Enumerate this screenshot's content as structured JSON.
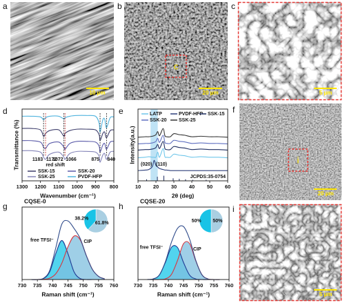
{
  "images": [
    {
      "label": "a",
      "scale_bar": "10 μm"
    },
    {
      "label": "b",
      "scale_bar": "20 μm",
      "inset_label": "c"
    },
    {
      "label": "c",
      "scale_bar": "5 μm"
    },
    {
      "label": "f",
      "scale_bar": "20 μm",
      "inset_label": "i"
    },
    {
      "label": "i",
      "scale_bar": "5 μm"
    }
  ],
  "chart_data": [
    {
      "type": "line",
      "panel": "d",
      "ylabel": "Transmittance (%)",
      "xlabel": "Wavenumber (cm⁻¹)",
      "x": [
        1300,
        1250,
        1200,
        1183,
        1172,
        1150,
        1100,
        1072,
        1066,
        1040,
        1000,
        950,
        900,
        880,
        875,
        860,
        850,
        840,
        820,
        800
      ],
      "xlim": [
        1300,
        800
      ],
      "xticks": [
        1300,
        1200,
        1100,
        1000,
        900,
        800
      ],
      "ylim": [
        0,
        1
      ],
      "series": [
        {
          "name": "SSK-15",
          "color": "#3d3d6b",
          "values": [
            0.73,
            0.73,
            0.71,
            0.62,
            0.66,
            0.7,
            0.71,
            0.62,
            0.66,
            0.7,
            0.72,
            0.72,
            0.71,
            0.64,
            0.56,
            0.66,
            0.68,
            0.6,
            0.7,
            0.71
          ]
        },
        {
          "name": "SSK-20",
          "color": "#5a5aa8",
          "values": [
            0.56,
            0.56,
            0.54,
            0.47,
            0.45,
            0.52,
            0.54,
            0.47,
            0.44,
            0.52,
            0.55,
            0.55,
            0.54,
            0.48,
            0.4,
            0.5,
            0.52,
            0.44,
            0.54,
            0.55
          ]
        },
        {
          "name": "SSK-25",
          "color": "#8484b8",
          "values": [
            0.42,
            0.42,
            0.4,
            0.33,
            0.3,
            0.37,
            0.4,
            0.33,
            0.3,
            0.38,
            0.41,
            0.41,
            0.4,
            0.34,
            0.26,
            0.36,
            0.38,
            0.3,
            0.4,
            0.41
          ]
        },
        {
          "name": "PVDF-HFP",
          "color": "#4fb3de",
          "values": [
            0.9,
            0.9,
            0.89,
            0.85,
            0.88,
            0.9,
            0.9,
            0.86,
            0.88,
            0.9,
            0.91,
            0.91,
            0.9,
            0.8,
            0.68,
            0.85,
            0.86,
            0.74,
            0.88,
            0.89
          ]
        }
      ],
      "peak_labels": [
        1183,
        1172,
        1072,
        1066,
        875,
        840
      ],
      "peak_label_colors": [
        "#111",
        "#c62828",
        "#111",
        "#c62828",
        "#111",
        "#111"
      ],
      "annotation": "red shift",
      "annotation_color": "#c62828"
    },
    {
      "type": "line",
      "panel": "e",
      "ylabel": "Intensity(a.u.)",
      "xlabel": "2θ (deg)",
      "x": [
        10,
        14,
        16,
        18,
        19,
        20,
        21,
        22,
        24,
        25,
        26,
        28,
        30,
        33,
        36,
        40,
        45,
        50,
        55,
        60
      ],
      "xlim": [
        10,
        60
      ],
      "xticks": [
        10,
        20,
        30,
        40,
        50,
        60
      ],
      "ylim": [
        0,
        1.4
      ],
      "shade": [
        17,
        21
      ],
      "shade_color": "#bfe3f5",
      "series": [
        {
          "name": "LATP",
          "color": "#6ec6ea",
          "values": [
            0.45,
            0.46,
            0.47,
            0.46,
            0.46,
            0.46,
            0.56,
            0.46,
            0.63,
            0.47,
            0.46,
            0.46,
            0.52,
            0.5,
            0.49,
            0.46,
            0.47,
            0.46,
            0.46,
            0.45
          ]
        },
        {
          "name": "PVDF-HFP",
          "color": "#2c3e7a",
          "values": [
            0.2,
            0.21,
            0.22,
            0.28,
            0.4,
            0.3,
            0.27,
            0.24,
            0.22,
            0.21,
            0.21,
            0.2,
            0.2,
            0.2,
            0.2,
            0.2,
            0.2,
            0.2,
            0.2,
            0.2
          ]
        },
        {
          "name": "SSK-15",
          "color": "#1b2a5e",
          "values": [
            0.6,
            0.61,
            0.61,
            0.62,
            0.63,
            0.65,
            0.71,
            0.63,
            0.77,
            0.63,
            0.61,
            0.61,
            0.67,
            0.65,
            0.64,
            0.61,
            0.62,
            0.61,
            0.61,
            0.6
          ]
        },
        {
          "name": "SSK-20",
          "color": "#5f6fc0",
          "values": [
            0.72,
            0.73,
            0.73,
            0.74,
            0.75,
            0.77,
            0.83,
            0.75,
            0.89,
            0.75,
            0.73,
            0.73,
            0.79,
            0.77,
            0.76,
            0.73,
            0.74,
            0.73,
            0.73,
            0.72
          ]
        },
        {
          "name": "SSK-25",
          "color": "#333333",
          "values": [
            0.85,
            0.86,
            0.86,
            0.87,
            0.88,
            0.9,
            0.96,
            0.88,
            1.02,
            0.88,
            0.86,
            0.86,
            0.92,
            0.9,
            0.89,
            0.86,
            0.87,
            0.86,
            0.86,
            0.85
          ]
        }
      ],
      "reference": {
        "name": "JCPDS:35-0754",
        "color": "#1b2a5e",
        "x": [
          14.8,
          20.8,
          24.4,
          29.6,
          33.0,
          36.5,
          40.5,
          48.0
        ],
        "values": [
          0.03,
          0.08,
          0.1,
          0.05,
          0.04,
          0.03,
          0.02,
          0.02
        ]
      },
      "annotations": [
        "(020)",
        "(110)"
      ]
    },
    {
      "type": "area",
      "panel": "g",
      "title": "CQSE-0",
      "xlabel": "Raman shift (cm⁻¹)",
      "x": [
        733,
        735,
        737,
        739,
        741,
        743,
        745,
        747,
        749,
        751,
        753,
        755,
        757
      ],
      "xlim": [
        730,
        760
      ],
      "xticks": [
        730,
        735,
        740,
        745,
        750,
        755,
        760
      ],
      "ylim": [
        0,
        1.15
      ],
      "series": [
        {
          "name": "free TFSI⁻",
          "color": "#1f3a93",
          "fill": "#18c5e8",
          "label_color": "#8e44ad",
          "values": [
            0,
            0,
            0.015,
            0.12,
            0.41,
            0.62,
            0.41,
            0.12,
            0.015,
            0,
            0,
            0,
            0
          ]
        },
        {
          "name": "CIP",
          "color": "#d9363e",
          "fill": "#7fbfdf",
          "label_color": "#16a3c9",
          "values": [
            0,
            0,
            0.003,
            0.02,
            0.09,
            0.26,
            0.52,
            0.69,
            0.63,
            0.38,
            0.16,
            0.05,
            0.01
          ]
        },
        {
          "color": "#2e4a8a",
          "values": [
            0,
            0,
            0.02,
            0.14,
            0.5,
            0.88,
            0.93,
            0.81,
            0.65,
            0.38,
            0.16,
            0.05,
            0.01
          ]
        }
      ],
      "inset": {
        "type": "pie",
        "values": [
          61.8,
          38.2
        ],
        "value_labels": [
          "61.8%",
          "38.2%"
        ],
        "colors": [
          "#a9cfe2",
          "#19c3e6"
        ]
      }
    },
    {
      "type": "area",
      "panel": "h",
      "title": "CQSE-20",
      "xlabel": "Raman shift (cm⁻¹)",
      "x": [
        733,
        735,
        737,
        739,
        741,
        743,
        745,
        747,
        749,
        751,
        753,
        755,
        757
      ],
      "xlim": [
        730,
        760
      ],
      "xticks": [
        730,
        735,
        740,
        745,
        750,
        755,
        760
      ],
      "ylim": [
        0,
        1.15
      ],
      "series": [
        {
          "name": "free TFSI⁻",
          "color": "#1f3a93",
          "fill": "#18c5e8",
          "label_color": "#8e44ad",
          "values": [
            0,
            0.01,
            0.07,
            0.27,
            0.51,
            0.51,
            0.27,
            0.07,
            0.01,
            0,
            0,
            0,
            0
          ]
        },
        {
          "name": "CIP",
          "color": "#d9363e",
          "fill": "#7fbfdf",
          "label_color": "#16a3c9",
          "values": [
            0,
            0,
            0,
            0.01,
            0.08,
            0.3,
            0.57,
            0.57,
            0.3,
            0.08,
            0.01,
            0,
            0
          ]
        },
        {
          "color": "#2e4a8a",
          "values": [
            0,
            0.01,
            0.07,
            0.28,
            0.59,
            0.81,
            0.84,
            0.64,
            0.31,
            0.08,
            0.01,
            0,
            0
          ]
        }
      ],
      "inset": {
        "type": "pie",
        "values": [
          50,
          50
        ],
        "value_labels": [
          "50%",
          "50%"
        ],
        "colors": [
          "#a9cfe2",
          "#19c3e6"
        ]
      }
    }
  ]
}
